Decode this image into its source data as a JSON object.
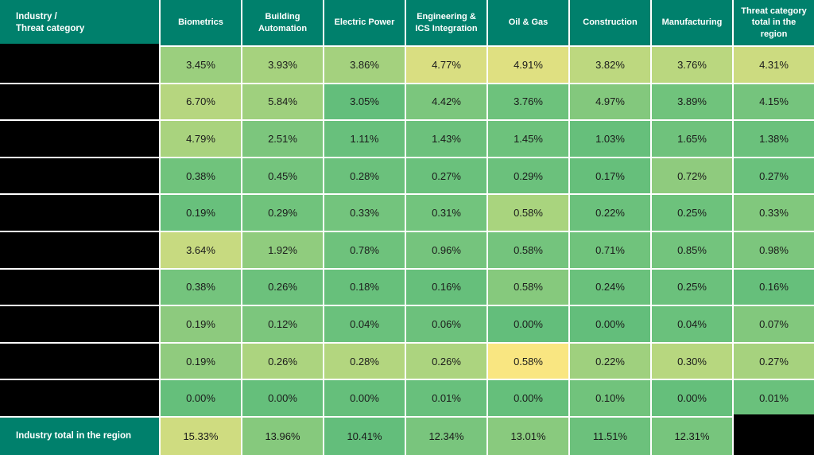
{
  "colors": {
    "header_bg": "#00806C",
    "header_text": "#FFFFFF",
    "grid_line": "#FFFFFF",
    "redacted": "#000000",
    "cell_text": "#1B1B1B",
    "scale_low_green": "#63BE7B",
    "scale_high_yellow": "#FCE884"
  },
  "table": {
    "corner_header": "Industry /\nThreat category",
    "columns": [
      "Biometrics",
      "Building Automation",
      "Electric Power",
      "Engineering & ICS Integration",
      "Oil & Gas",
      "Construction",
      "Manufacturing",
      "Threat category total in the region"
    ],
    "rows": [
      {
        "label_redacted": true,
        "cells": [
          {
            "v": "3.45%",
            "c": "#9BCF7E"
          },
          {
            "v": "3.93%",
            "c": "#A6D27E"
          },
          {
            "v": "3.86%",
            "c": "#A4D17E"
          },
          {
            "v": "4.77%",
            "c": "#D9DE81"
          },
          {
            "v": "4.91%",
            "c": "#DFE081"
          },
          {
            "v": "3.82%",
            "c": "#BDD87F"
          },
          {
            "v": "3.76%",
            "c": "#BAD77F"
          },
          {
            "v": "4.31%",
            "c": "#CCDB80"
          }
        ]
      },
      {
        "label_redacted": true,
        "cells": [
          {
            "v": "6.70%",
            "c": "#B6D67F"
          },
          {
            "v": "5.84%",
            "c": "#9FD07E"
          },
          {
            "v": "3.05%",
            "c": "#63BE7B"
          },
          {
            "v": "4.42%",
            "c": "#7BC67D"
          },
          {
            "v": "3.76%",
            "c": "#6DC27C"
          },
          {
            "v": "4.97%",
            "c": "#83C87D"
          },
          {
            "v": "3.89%",
            "c": "#70C37C"
          },
          {
            "v": "4.15%",
            "c": "#75C47D"
          }
        ]
      },
      {
        "label_redacted": true,
        "cells": [
          {
            "v": "4.79%",
            "c": "#A9D37E"
          },
          {
            "v": "2.51%",
            "c": "#7CC67D"
          },
          {
            "v": "1.11%",
            "c": "#68C07C"
          },
          {
            "v": "1.43%",
            "c": "#6CC17C"
          },
          {
            "v": "1.45%",
            "c": "#6DC27C"
          },
          {
            "v": "1.03%",
            "c": "#66BF7B"
          },
          {
            "v": "1.65%",
            "c": "#6FC27C"
          },
          {
            "v": "1.38%",
            "c": "#6BC17C"
          }
        ]
      },
      {
        "label_redacted": true,
        "cells": [
          {
            "v": "0.38%",
            "c": "#70C37C"
          },
          {
            "v": "0.45%",
            "c": "#74C47D"
          },
          {
            "v": "0.28%",
            "c": "#6BC17C"
          },
          {
            "v": "0.27%",
            "c": "#6AC17C"
          },
          {
            "v": "0.29%",
            "c": "#6BC17C"
          },
          {
            "v": "0.17%",
            "c": "#66BF7B"
          },
          {
            "v": "0.72%",
            "c": "#8FCB7E"
          },
          {
            "v": "0.27%",
            "c": "#6AC17C"
          }
        ]
      },
      {
        "label_redacted": true,
        "cells": [
          {
            "v": "0.19%",
            "c": "#68C07C"
          },
          {
            "v": "0.29%",
            "c": "#70C37C"
          },
          {
            "v": "0.33%",
            "c": "#73C47D"
          },
          {
            "v": "0.31%",
            "c": "#72C47D"
          },
          {
            "v": "0.58%",
            "c": "#A9D47E"
          },
          {
            "v": "0.22%",
            "c": "#6BC17C"
          },
          {
            "v": "0.25%",
            "c": "#6DC27C"
          },
          {
            "v": "0.33%",
            "c": "#81C87D"
          }
        ]
      },
      {
        "label_redacted": true,
        "cells": [
          {
            "v": "3.64%",
            "c": "#C7DA80"
          },
          {
            "v": "1.92%",
            "c": "#90CC7E"
          },
          {
            "v": "0.78%",
            "c": "#6EC27C"
          },
          {
            "v": "0.96%",
            "c": "#75C47D"
          },
          {
            "v": "0.58%",
            "c": "#74C47D"
          },
          {
            "v": "0.71%",
            "c": "#70C37C"
          },
          {
            "v": "0.85%",
            "c": "#73C47D"
          },
          {
            "v": "0.98%",
            "c": "#7CC67D"
          }
        ]
      },
      {
        "label_redacted": true,
        "cells": [
          {
            "v": "0.38%",
            "c": "#74C47D"
          },
          {
            "v": "0.26%",
            "c": "#6CC17C"
          },
          {
            "v": "0.18%",
            "c": "#67C07B"
          },
          {
            "v": "0.16%",
            "c": "#66BF7B"
          },
          {
            "v": "0.58%",
            "c": "#86C97D"
          },
          {
            "v": "0.24%",
            "c": "#6AC17C"
          },
          {
            "v": "0.25%",
            "c": "#6BC17C"
          },
          {
            "v": "0.16%",
            "c": "#66BF7B"
          }
        ]
      },
      {
        "label_redacted": true,
        "cells": [
          {
            "v": "0.19%",
            "c": "#8DCA7E"
          },
          {
            "v": "0.12%",
            "c": "#7CC67D"
          },
          {
            "v": "0.04%",
            "c": "#6AC17C"
          },
          {
            "v": "0.06%",
            "c": "#6CC17C"
          },
          {
            "v": "0.00%",
            "c": "#63BE7B"
          },
          {
            "v": "0.00%",
            "c": "#63BE7B"
          },
          {
            "v": "0.04%",
            "c": "#6AC17C"
          },
          {
            "v": "0.07%",
            "c": "#82C87D"
          }
        ]
      },
      {
        "label_redacted": true,
        "cells": [
          {
            "v": "0.19%",
            "c": "#90CB7E"
          },
          {
            "v": "0.26%",
            "c": "#ACD47F"
          },
          {
            "v": "0.28%",
            "c": "#B3D67F"
          },
          {
            "v": "0.26%",
            "c": "#ACD47F"
          },
          {
            "v": "0.58%",
            "c": "#F9E681"
          },
          {
            "v": "0.22%",
            "c": "#9FD07E"
          },
          {
            "v": "0.30%",
            "c": "#B7D77F"
          },
          {
            "v": "0.27%",
            "c": "#A6D27E"
          }
        ]
      },
      {
        "label_redacted": true,
        "cells": [
          {
            "v": "0.00%",
            "c": "#65BF7B"
          },
          {
            "v": "0.00%",
            "c": "#65BF7B"
          },
          {
            "v": "0.00%",
            "c": "#65BF7B"
          },
          {
            "v": "0.01%",
            "c": "#68C07C"
          },
          {
            "v": "0.00%",
            "c": "#65BF7B"
          },
          {
            "v": "0.10%",
            "c": "#71C37C"
          },
          {
            "v": "0.00%",
            "c": "#65BF7B"
          },
          {
            "v": "0.01%",
            "c": "#6AC17C"
          }
        ]
      }
    ],
    "total_row": {
      "label": "Industry total in the region",
      "cells": [
        {
          "v": "15.33%",
          "c": "#CFDC80"
        },
        {
          "v": "13.96%",
          "c": "#86C97D"
        },
        {
          "v": "10.41%",
          "c": "#63BE7B"
        },
        {
          "v": "12.34%",
          "c": "#79C57D"
        },
        {
          "v": "13.01%",
          "c": "#89CA7E"
        },
        {
          "v": "11.51%",
          "c": "#6CC17C"
        },
        {
          "v": "12.31%",
          "c": "#77C57D"
        }
      ],
      "last_cell_redacted": true
    }
  },
  "chart_data": {
    "type": "heatmap",
    "title": "",
    "columns": [
      "Biometrics",
      "Building Automation",
      "Electric Power",
      "Engineering & ICS Integration",
      "Oil & Gas",
      "Construction",
      "Manufacturing",
      "Threat category total in the region"
    ],
    "row_labels": "redacted (black boxes)",
    "rows": [
      [
        3.45,
        3.93,
        3.86,
        4.77,
        4.91,
        3.82,
        3.76,
        4.31
      ],
      [
        6.7,
        5.84,
        3.05,
        4.42,
        3.76,
        4.97,
        3.89,
        4.15
      ],
      [
        4.79,
        2.51,
        1.11,
        1.43,
        1.45,
        1.03,
        1.65,
        1.38
      ],
      [
        0.38,
        0.45,
        0.28,
        0.27,
        0.29,
        0.17,
        0.72,
        0.27
      ],
      [
        0.19,
        0.29,
        0.33,
        0.31,
        0.58,
        0.22,
        0.25,
        0.33
      ],
      [
        3.64,
        1.92,
        0.78,
        0.96,
        0.58,
        0.71,
        0.85,
        0.98
      ],
      [
        0.38,
        0.26,
        0.18,
        0.16,
        0.58,
        0.24,
        0.25,
        0.16
      ],
      [
        0.19,
        0.12,
        0.04,
        0.06,
        0.0,
        0.0,
        0.04,
        0.07
      ],
      [
        0.19,
        0.26,
        0.28,
        0.26,
        0.58,
        0.22,
        0.3,
        0.27
      ],
      [
        0.0,
        0.0,
        0.0,
        0.01,
        0.0,
        0.1,
        0.0,
        0.01
      ]
    ],
    "industry_total_row": {
      "label": "Industry total in the region",
      "values": [
        15.33,
        13.96,
        10.41,
        12.34,
        13.01,
        11.51,
        12.31
      ],
      "last_cell": "redacted (black box)"
    },
    "unit": "percent",
    "legend_position": "none",
    "colorscale": {
      "low": "#63BE7B",
      "high": "#FCE884",
      "note": "green = low, yellow = high, shaded per row"
    }
  }
}
